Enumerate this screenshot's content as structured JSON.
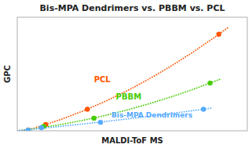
{
  "chart_data": {
    "type": "scatter",
    "title": "Bis-MPA Dendrimers vs. PBBM vs. PCL",
    "x_label": "MALDI-ToF MS",
    "y_label": "GPC",
    "xlim": [
      0.0,
      10.5
    ],
    "ylim": [
      0.0,
      10.0
    ],
    "xticks": [],
    "yticks": [],
    "grid": false,
    "tick_labels": false,
    "series": [
      {
        "type": "line",
        "line_style": "dotted",
        "color": "#ff5500",
        "x": [
          0,
          0.5,
          1,
          2,
          3,
          4,
          5,
          6,
          7,
          8,
          9,
          9.66
        ],
        "values": [
          0,
          0.082,
          0.365,
          1.005,
          1.742,
          2.577,
          3.511,
          4.542,
          5.671,
          6.898,
          8.223,
          9.151
        ]
      },
      {
        "type": "scatter",
        "marker": "circle",
        "color": "#ff5500",
        "x": [
          0.5,
          1.3,
          3.2,
          9.2
        ],
        "values": [
          0.08,
          0.55,
          1.9,
          8.5
        ]
      },
      {
        "type": "line",
        "line_style": "dotted",
        "color": "#44cc00",
        "x": [
          0,
          0.5,
          1,
          2,
          3,
          4,
          5,
          6,
          7,
          8,
          9.24
        ],
        "values": [
          0,
          0.114,
          0.246,
          0.554,
          0.921,
          1.345,
          1.829,
          2.37,
          2.97,
          3.628,
          4.526
        ]
      },
      {
        "type": "scatter",
        "marker": "circle",
        "color": "#44cc00",
        "x": [
          0.5,
          1.2,
          3.5,
          8.8
        ],
        "values": [
          0.06,
          0.38,
          1.1,
          4.2
        ]
      },
      {
        "type": "line",
        "line_style": "dotted",
        "color": "#55aaff",
        "x": [
          0,
          0.5,
          1,
          2,
          3,
          4,
          5,
          6,
          7,
          8,
          8.925
        ],
        "values": [
          0.007,
          0.1,
          0.195,
          0.391,
          0.597,
          0.813,
          1.037,
          1.271,
          1.515,
          1.767,
          2.009
        ]
      },
      {
        "type": "scatter",
        "marker": "circle",
        "color": "#55aaff",
        "x": [
          0.5,
          1.1,
          3.8,
          8.5
        ],
        "values": [
          0.05,
          0.28,
          0.75,
          1.9
        ]
      }
    ],
    "annotations": [
      {
        "text": "PCL",
        "x": 3.5,
        "y": 4.5,
        "color": "#ff5500"
      },
      {
        "text": "PBBM",
        "x": 4.5,
        "y": 3.0,
        "color": "#44cc00"
      },
      {
        "text": "Bis-MPA Dendrimers",
        "x": 4.3,
        "y": 1.35,
        "color": "#55aaff"
      }
    ]
  }
}
